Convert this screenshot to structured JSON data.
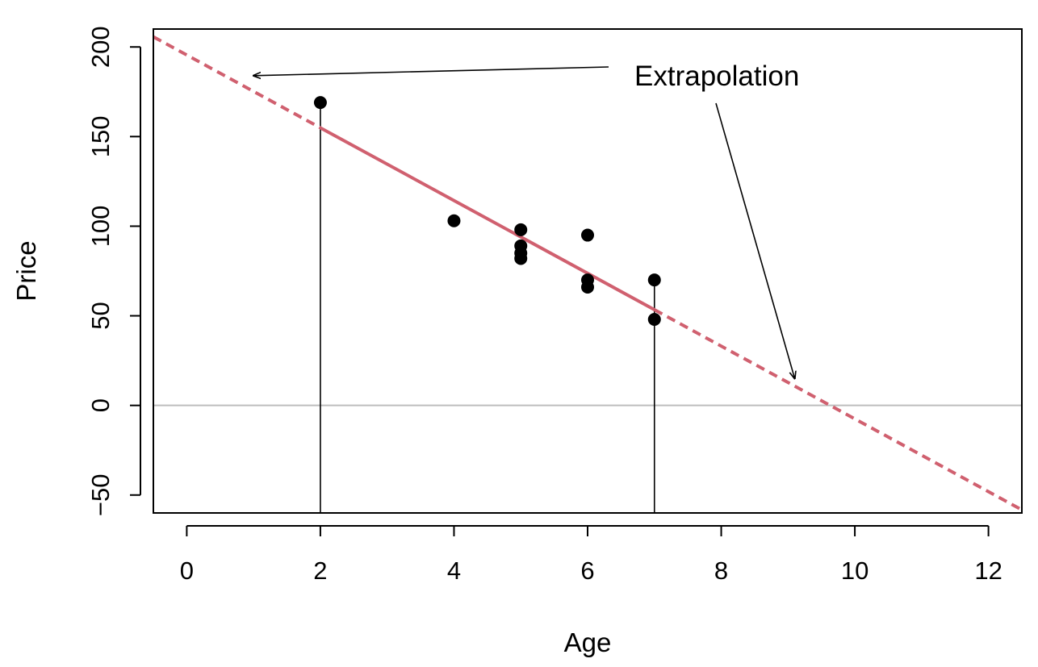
{
  "chart_data": {
    "type": "scatter",
    "xlabel": "Age",
    "ylabel": "Price",
    "xlim": [
      -0.5,
      12.5
    ],
    "ylim": [
      -60,
      210
    ],
    "x_ticks": [
      "0",
      "2",
      "4",
      "6",
      "8",
      "10",
      "12"
    ],
    "y_ticks": [
      "−50",
      "0",
      "50",
      "100",
      "150",
      "200"
    ],
    "points": [
      {
        "x": 2,
        "y": 169
      },
      {
        "x": 4,
        "y": 103
      },
      {
        "x": 5,
        "y": 98
      },
      {
        "x": 5,
        "y": 89
      },
      {
        "x": 5,
        "y": 85
      },
      {
        "x": 5,
        "y": 82
      },
      {
        "x": 6,
        "y": 95
      },
      {
        "x": 6,
        "y": 70
      },
      {
        "x": 6,
        "y": 66
      },
      {
        "x": 7,
        "y": 70
      },
      {
        "x": 7,
        "y": 48
      }
    ],
    "fit_line": {
      "intercept": 195.5,
      "slope": -20.3,
      "fitted_range": [
        2,
        7
      ],
      "color": "#d0606f"
    },
    "reference_line_y": 0,
    "reference_line_color": "#bdbdbd",
    "vertical_guides_x": [
      2,
      7
    ],
    "annotation": {
      "text": "Extrapolation",
      "arrow_targets": [
        {
          "x": 1,
          "y": 184
        },
        {
          "x": 9.1,
          "y": 15
        }
      ]
    }
  }
}
